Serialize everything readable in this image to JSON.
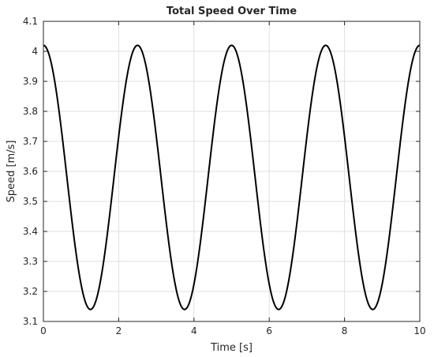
{
  "chart_data": {
    "type": "line",
    "title": "Total Speed Over Time",
    "xlabel": "Time [s]",
    "ylabel": "Speed [m/s]",
    "xlim": [
      0,
      10
    ],
    "ylim": [
      3.1,
      4.1
    ],
    "xticks": [
      0,
      2,
      4,
      6,
      8,
      10
    ],
    "yticks": [
      3.1,
      3.2,
      3.3,
      3.4,
      3.5,
      3.6,
      3.7,
      3.8,
      3.9,
      4,
      4.1
    ],
    "grid": true,
    "legend": "none",
    "series_color": "#000000",
    "series": [
      {
        "x": [
          0,
          0.25,
          0.5,
          0.75,
          1.0,
          1.25,
          1.5,
          1.75,
          2.0,
          2.25,
          2.5,
          2.75,
          3.0,
          3.25,
          3.5,
          3.75,
          4.0,
          4.25,
          4.5,
          4.75,
          5.0,
          5.25,
          5.5,
          5.75,
          6.0,
          6.25,
          6.5,
          6.75,
          7.0,
          7.25,
          7.5,
          7.75,
          8.0,
          8.25,
          8.5,
          8.75,
          9.0,
          9.25,
          9.5,
          9.75,
          10.0
        ],
        "y": [
          4.02,
          3.936,
          3.716,
          3.444,
          3.224,
          3.14,
          3.224,
          3.444,
          3.716,
          3.936,
          4.02,
          3.936,
          3.716,
          3.444,
          3.224,
          3.14,
          3.224,
          3.444,
          3.716,
          3.936,
          4.02,
          3.936,
          3.716,
          3.444,
          3.224,
          3.14,
          3.224,
          3.444,
          3.716,
          3.936,
          4.02,
          3.936,
          3.716,
          3.444,
          3.224,
          3.14,
          3.224,
          3.444,
          3.716,
          3.936,
          4.02
        ]
      }
    ]
  }
}
